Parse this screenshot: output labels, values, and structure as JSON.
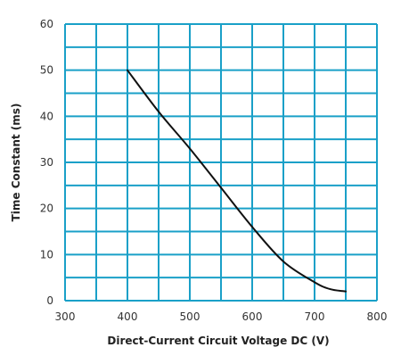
{
  "colors": {
    "grid": "#1aa0c8",
    "curve": "#111111",
    "text": "#333333",
    "background": "#ffffff"
  },
  "chart_data": {
    "type": "line",
    "title": "",
    "xlabel": "Direct-Current Circuit Voltage DC (V)",
    "ylabel": "Time Constant (ms)",
    "xlim": [
      300,
      800
    ],
    "ylim": [
      0,
      60
    ],
    "xticks": [
      300,
      400,
      500,
      600,
      700,
      800
    ],
    "yticks": [
      0,
      10,
      20,
      30,
      40,
      50,
      60
    ],
    "x_gridline_step": 50,
    "y_gridline_step": 5,
    "grid": true,
    "legend": "none",
    "series": [
      {
        "x": [
          400,
          450,
          500,
          550,
          600,
          650,
          700,
          725,
          750
        ],
        "y": [
          50,
          41,
          33,
          24.5,
          16,
          8.5,
          4,
          2.5,
          2
        ]
      }
    ]
  }
}
